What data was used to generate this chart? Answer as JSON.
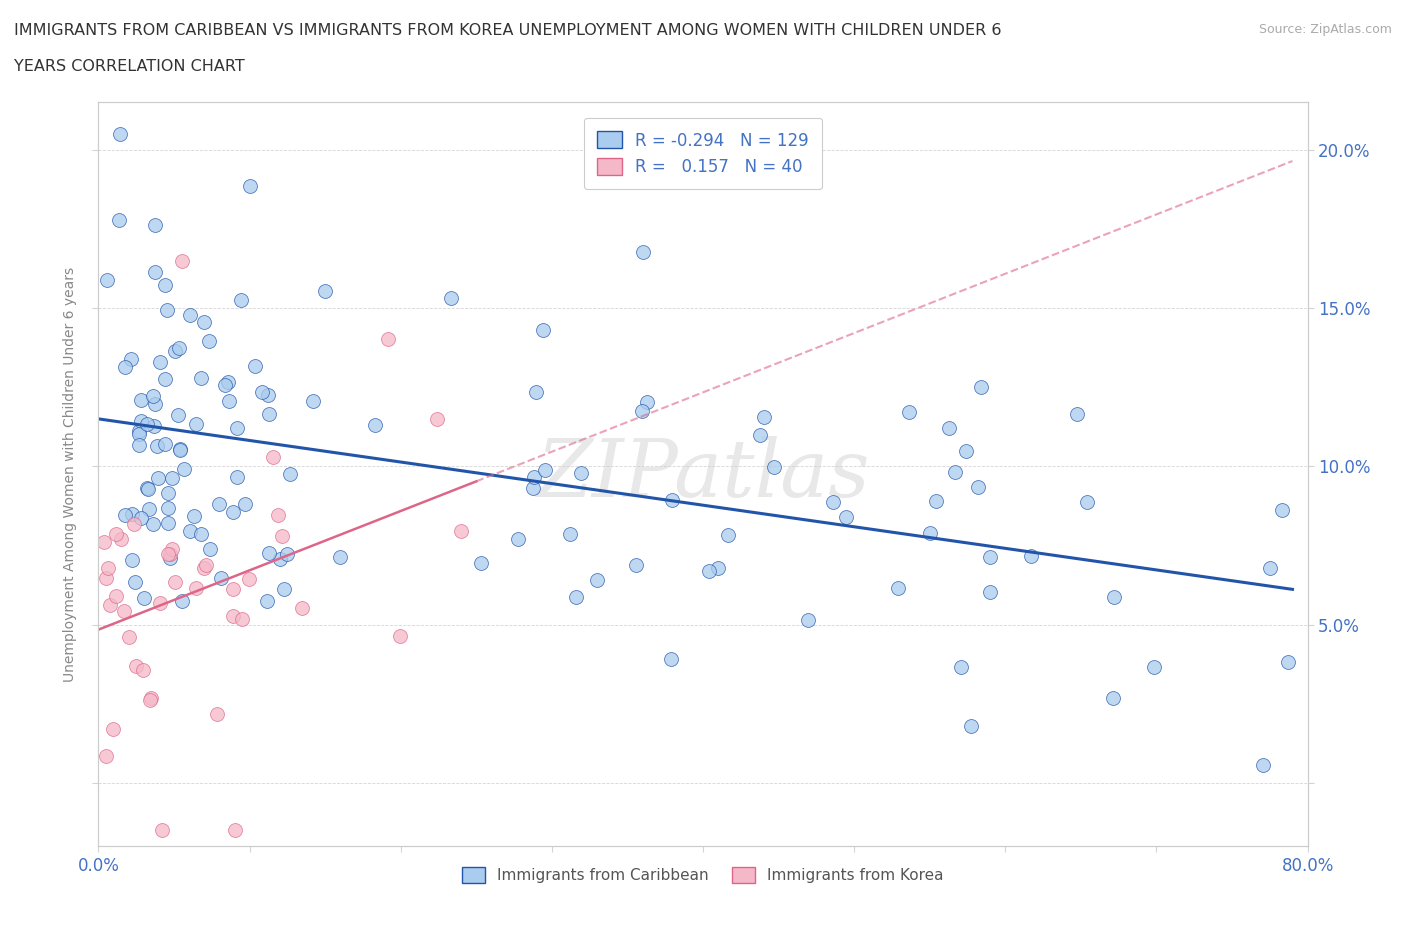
{
  "title_line1": "IMMIGRANTS FROM CARIBBEAN VS IMMIGRANTS FROM KOREA UNEMPLOYMENT AMONG WOMEN WITH CHILDREN UNDER 6",
  "title_line2": "YEARS CORRELATION CHART",
  "source_text": "Source: ZipAtlas.com",
  "ylabel": "Unemployment Among Women with Children Under 6 years",
  "xlim": [
    0.0,
    0.8
  ],
  "ylim": [
    -0.02,
    0.215
  ],
  "R_caribbean": -0.294,
  "N_caribbean": 129,
  "R_korea": 0.157,
  "N_korea": 40,
  "color_caribbean": "#aaccee",
  "color_korea": "#f5b8c8",
  "line_color_caribbean": "#2255aa",
  "line_color_korea": "#dd6688",
  "watermark": "ZIPatlas"
}
